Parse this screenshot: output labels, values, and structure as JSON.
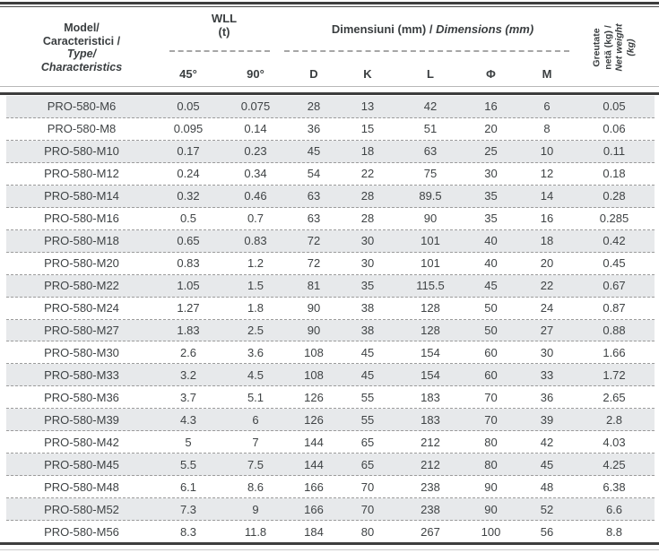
{
  "header": {
    "model_lines": [
      "Model/",
      "Caracteristici /",
      "Type/",
      "Characteristics"
    ],
    "wll_line1": "WLL",
    "wll_line2": "(t)",
    "angle_headers": [
      "45°",
      "90°"
    ],
    "dim_title_ro": "Dimensiuni (mm) / ",
    "dim_title_en": "Dimensions (mm)",
    "dim_headers": [
      "D",
      "K",
      "L",
      "Φ",
      "M"
    ],
    "weight_lines": [
      "Greutate",
      "netă (kg) /",
      "Net weight",
      "(kg)"
    ]
  },
  "table": {
    "columns": [
      "Model",
      "WLL 45°",
      "WLL 90°",
      "D",
      "K",
      "L",
      "Φ",
      "M",
      "Net weight (kg)"
    ],
    "rows": [
      [
        "PRO-580-M6",
        "0.05",
        "0.075",
        "28",
        "13",
        "42",
        "16",
        "6",
        "0.05"
      ],
      [
        "PRO-580-M8",
        "0.095",
        "0.14",
        "36",
        "15",
        "51",
        "20",
        "8",
        "0.06"
      ],
      [
        "PRO-580-M10",
        "0.17",
        "0.23",
        "45",
        "18",
        "63",
        "25",
        "10",
        "0.11"
      ],
      [
        "PRO-580-M12",
        "0.24",
        "0.34",
        "54",
        "22",
        "75",
        "30",
        "12",
        "0.18"
      ],
      [
        "PRO-580-M14",
        "0.32",
        "0.46",
        "63",
        "28",
        "89.5",
        "35",
        "14",
        "0.28"
      ],
      [
        "PRO-580-M16",
        "0.5",
        "0.7",
        "63",
        "28",
        "90",
        "35",
        "16",
        "0.285"
      ],
      [
        "PRO-580-M18",
        "0.65",
        "0.83",
        "72",
        "30",
        "101",
        "40",
        "18",
        "0.42"
      ],
      [
        "PRO-580-M20",
        "0.83",
        "1.2",
        "72",
        "30",
        "101",
        "40",
        "20",
        "0.45"
      ],
      [
        "PRO-580-M22",
        "1.05",
        "1.5",
        "81",
        "35",
        "115.5",
        "45",
        "22",
        "0.67"
      ],
      [
        "PRO-580-M24",
        "1.27",
        "1.8",
        "90",
        "38",
        "128",
        "50",
        "24",
        "0.87"
      ],
      [
        "PRO-580-M27",
        "1.83",
        "2.5",
        "90",
        "38",
        "128",
        "50",
        "27",
        "0.88"
      ],
      [
        "PRO-580-M30",
        "2.6",
        "3.6",
        "108",
        "45",
        "154",
        "60",
        "30",
        "1.66"
      ],
      [
        "PRO-580-M33",
        "3.2",
        "4.5",
        "108",
        "45",
        "154",
        "60",
        "33",
        "1.72"
      ],
      [
        "PRO-580-M36",
        "3.7",
        "5.1",
        "126",
        "55",
        "183",
        "70",
        "36",
        "2.65"
      ],
      [
        "PRO-580-M39",
        "4.3",
        "6",
        "126",
        "55",
        "183",
        "70",
        "39",
        "2.8"
      ],
      [
        "PRO-580-M42",
        "5",
        "7",
        "144",
        "65",
        "212",
        "80",
        "42",
        "4.03"
      ],
      [
        "PRO-580-M45",
        "5.5",
        "7.5",
        "144",
        "65",
        "212",
        "80",
        "45",
        "4.25"
      ],
      [
        "PRO-580-M48",
        "6.1",
        "8.6",
        "166",
        "70",
        "238",
        "90",
        "48",
        "6.38"
      ],
      [
        "PRO-580-M52",
        "7.3",
        "9",
        "166",
        "70",
        "238",
        "90",
        "52",
        "6.6"
      ],
      [
        "PRO-580-M56",
        "8.3",
        "11.8",
        "184",
        "80",
        "267",
        "100",
        "56",
        "8.8"
      ]
    ]
  },
  "colors": {
    "row_shade": "#e7e9eb",
    "rule_dark": "#3d3d3d",
    "dash_gray": "#9c9c9c",
    "text": "#3f4345"
  }
}
